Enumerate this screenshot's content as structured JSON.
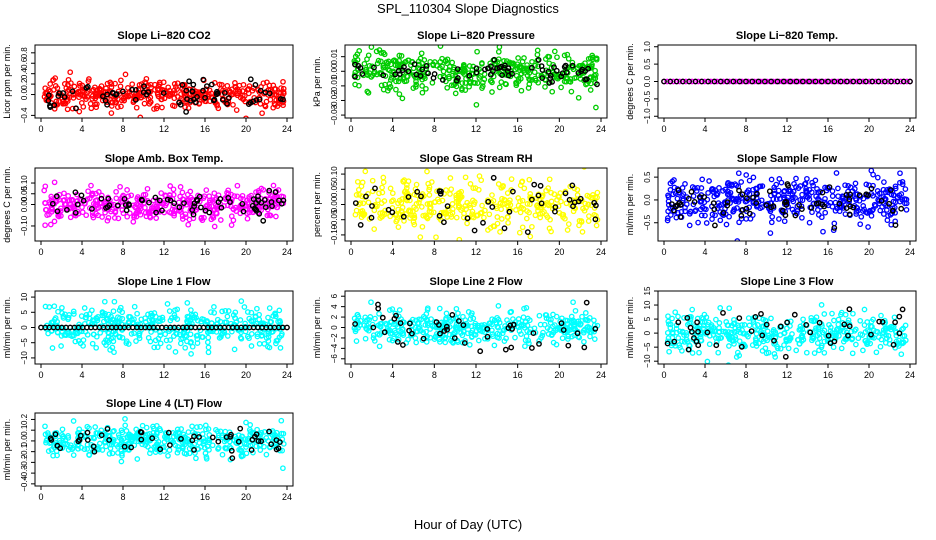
{
  "figure": {
    "title": "SPL_110304  Slope Diagnostics",
    "xlabel": "Hour of Day (UTC)"
  },
  "chart_data": [
    {
      "id": "co2",
      "type": "scatter",
      "title": "Slope Li−820 CO2",
      "ylabel": "Licor ppm per min.",
      "xlim": [
        0,
        24
      ],
      "xticks": [
        0,
        4,
        8,
        12,
        16,
        20,
        24
      ],
      "ylim": [
        -0.45,
        0.95
      ],
      "yticks": [
        -0.4,
        0,
        0.2,
        0.4,
        0.6,
        0.8
      ],
      "ytick_labels": [
        "−0.4",
        "0.0",
        "0.2",
        "0.4",
        "0.6",
        "0.8"
      ],
      "color": "#ff0000",
      "spread": 0.13,
      "n": 420,
      "center": 0.0,
      "black": {
        "n": 70,
        "spread": 0.12,
        "center": 0.0
      }
    },
    {
      "id": "pressure",
      "type": "scatter",
      "title": "Slope Li−820 Pressure",
      "ylabel": "kPa per min.",
      "xlim": [
        0,
        24
      ],
      "xticks": [
        0,
        4,
        8,
        12,
        16,
        20,
        24
      ],
      "ylim": [
        -0.032,
        0.018
      ],
      "yticks": [
        -0.03,
        -0.02,
        -0.01,
        0,
        0.01
      ],
      "ytick_labels": [
        "−0.03",
        "−0.02",
        "−0.01",
        "0.00",
        "0.01"
      ],
      "color": "#00cc00",
      "spread": 0.007,
      "n": 420,
      "center": 0.0,
      "black": {
        "n": 70,
        "spread": 0.004,
        "center": 0.0
      }
    },
    {
      "id": "temp",
      "type": "scatter",
      "title": "Slope Li−820 Temp.",
      "ylabel": "degrees C per min.",
      "xlim": [
        0,
        24
      ],
      "xticks": [
        0,
        4,
        8,
        12,
        16,
        20,
        24
      ],
      "ylim": [
        -1.05,
        1.05
      ],
      "yticks": [
        -1,
        -0.5,
        0,
        0.5,
        1
      ],
      "ytick_labels": [
        "−1.0",
        "−0.5",
        "0.0",
        "0.5",
        "1.0"
      ],
      "color": "#ff00ff",
      "spread": 0.0,
      "n": 80,
      "center": 0.0,
      "black": {
        "n": 40,
        "spread": 0.0,
        "center": 0.0
      }
    },
    {
      "id": "boxtemp",
      "type": "scatter",
      "title": "Slope Amb. Box Temp.",
      "ylabel": "degrees C per min.",
      "xlim": [
        0,
        24
      ],
      "xticks": [
        0,
        4,
        8,
        12,
        16,
        20,
        24
      ],
      "ylim": [
        -0.17,
        0.17
      ],
      "yticks": [
        -0.1,
        0,
        0.05,
        0.1
      ],
      "ytick_labels": [
        "−0.10",
        "0.00",
        "0.05",
        "0.10"
      ],
      "color": "#ff00ff",
      "spread": 0.04,
      "n": 420,
      "center": 0.0,
      "black": {
        "n": 70,
        "spread": 0.025,
        "center": 0.0
      }
    },
    {
      "id": "rh",
      "type": "scatter",
      "title": "Slope Gas Stream RH",
      "ylabel": "percent per min.",
      "xlim": [
        0,
        24
      ],
      "xticks": [
        0,
        4,
        8,
        12,
        16,
        20,
        24
      ],
      "ylim": [
        -0.12,
        0.12
      ],
      "yticks": [
        -0.1,
        -0.05,
        0,
        0.05,
        0.1
      ],
      "ytick_labels": [
        "−0.10",
        "−0.05",
        "0.00",
        "0.05",
        "0.10"
      ],
      "color": "#ffff00",
      "spread": 0.04,
      "n": 380,
      "center": 0.0,
      "black": {
        "n": 45,
        "spread": 0.04,
        "center": 0.0
      }
    },
    {
      "id": "sampleflow",
      "type": "scatter",
      "title": "Slope Sample Flow",
      "ylabel": "ml/min per min.",
      "xlim": [
        0,
        24
      ],
      "xticks": [
        0,
        4,
        8,
        12,
        16,
        20,
        24
      ],
      "ylim": [
        -0.9,
        0.7
      ],
      "yticks": [
        -0.5,
        0,
        0.5
      ],
      "ytick_labels": [
        "−0.5",
        "0.0",
        "0.5"
      ],
      "color": "#0000ff",
      "spread": 0.25,
      "n": 420,
      "center": 0.0,
      "black": {
        "n": 70,
        "spread": 0.2,
        "center": -0.1
      }
    },
    {
      "id": "line1",
      "type": "scatter",
      "title": "Slope Line 1 Flow",
      "ylabel": "ml/min per min.",
      "xlim": [
        0,
        24
      ],
      "xticks": [
        0,
        4,
        8,
        12,
        16,
        20,
        24
      ],
      "ylim": [
        -12,
        12
      ],
      "yticks": [
        -10,
        -5,
        0,
        5,
        10
      ],
      "ytick_labels": [
        "−10",
        "−5",
        "0",
        "5",
        "10"
      ],
      "color": "#00ffff",
      "spread": 3.5,
      "n": 420,
      "center": 0.0,
      "black": {
        "n": 60,
        "spread": 0.0,
        "center": 0.0,
        "even": true
      }
    },
    {
      "id": "line2",
      "type": "scatter",
      "title": "Slope Line 2 Flow",
      "ylabel": "ml/min per min.",
      "xlim": [
        0,
        24
      ],
      "xticks": [
        0,
        4,
        8,
        12,
        16,
        20,
        24
      ],
      "ylim": [
        -7,
        7
      ],
      "yticks": [
        -6,
        -4,
        -2,
        0,
        2,
        4,
        6
      ],
      "ytick_labels": [
        "−6",
        "−4",
        "−2",
        "0",
        "2",
        "4",
        "6"
      ],
      "color": "#00ffff",
      "spread": 1.6,
      "n": 420,
      "center": 0.0,
      "black": {
        "n": 45,
        "spread": 2.0,
        "center": 0.0
      }
    },
    {
      "id": "line3",
      "type": "scatter",
      "title": "Slope Line 3 Flow",
      "ylabel": "ml/min per min.",
      "xlim": [
        0,
        24
      ],
      "xticks": [
        0,
        4,
        8,
        12,
        16,
        20,
        24
      ],
      "ylim": [
        -11,
        15
      ],
      "yticks": [
        -10,
        -5,
        0,
        5,
        10,
        15
      ],
      "ytick_labels": [
        "−10",
        "−5",
        "0",
        "5",
        "10",
        "15"
      ],
      "color": "#00ffff",
      "spread": 3.5,
      "n": 420,
      "center": 0.0,
      "black": {
        "n": 45,
        "spread": 4.0,
        "center": 0.0
      }
    },
    {
      "id": "line4",
      "type": "scatter",
      "title": "Slope Line 4 (LT) Flow",
      "ylabel": "ml/min per min.",
      "xlim": [
        0,
        24
      ],
      "xticks": [
        0,
        4,
        8,
        12,
        16,
        20,
        24
      ],
      "ylim": [
        -0.42,
        0.26
      ],
      "yticks": [
        -0.4,
        -0.3,
        -0.2,
        -0.1,
        0,
        0.1,
        0.2
      ],
      "ytick_labels": [
        "−0.4",
        "−0.3",
        "−0.2",
        "−0.1",
        "0.0",
        "0.1",
        "0.2"
      ],
      "color": "#00ffff",
      "spread": 0.07,
      "n": 420,
      "center": 0.0,
      "black": {
        "n": 50,
        "spread": 0.06,
        "center": 0.0
      }
    }
  ]
}
